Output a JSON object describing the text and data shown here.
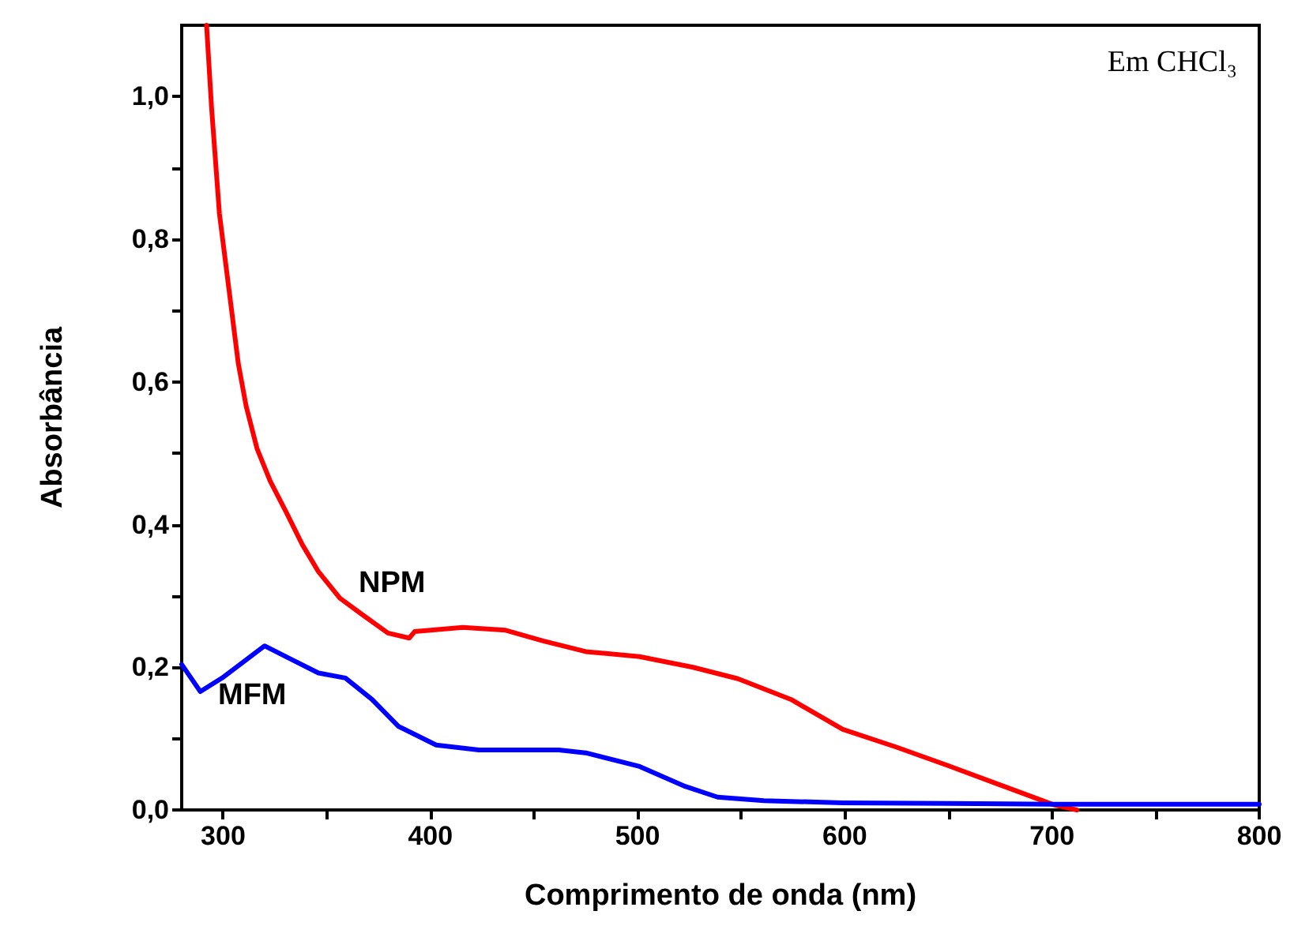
{
  "chart_data": {
    "type": "line",
    "xlabel": "Comprimento de onda (nm)",
    "ylabel": "Absorbância",
    "xlim": [
      280,
      800
    ],
    "ylim": [
      0,
      1.1
    ],
    "xticks": [
      {
        "value": 300,
        "label": "300"
      },
      {
        "value": 350,
        "label": null
      },
      {
        "value": 400,
        "label": "400"
      },
      {
        "value": 450,
        "label": null
      },
      {
        "value": 500,
        "label": "500"
      },
      {
        "value": 550,
        "label": null
      },
      {
        "value": 600,
        "label": "600"
      },
      {
        "value": 650,
        "label": null
      },
      {
        "value": 700,
        "label": "700"
      },
      {
        "value": 750,
        "label": null
      },
      {
        "value": 800,
        "label": "800"
      }
    ],
    "yticks": [
      {
        "value": 0,
        "label": "0,0"
      },
      {
        "value": 0.1,
        "label": null
      },
      {
        "value": 0.2,
        "label": "0,2"
      },
      {
        "value": 0.3,
        "label": null
      },
      {
        "value": 0.4,
        "label": "0,4"
      },
      {
        "value": 0.5,
        "label": null
      },
      {
        "value": 0.6,
        "label": "0,6"
      },
      {
        "value": 0.7,
        "label": null
      },
      {
        "value": 0.8,
        "label": "0,8"
      },
      {
        "value": 0.9,
        "label": null
      },
      {
        "value": 1.0,
        "label": "1,0"
      }
    ],
    "grid": false,
    "marker": "none",
    "line_style": "solid",
    "annotations": [
      "Em CHCl₃",
      "NPM",
      "MFM"
    ],
    "series": [
      {
        "color": "#ff0000",
        "x": [
          292,
          294.4,
          298.2,
          302.1,
          307.3,
          311.1,
          316.3,
          322.7,
          330.5,
          338.2,
          346,
          356.3,
          366.6,
          379.5,
          389.8,
          392.4,
          415.7,
          436.3,
          454.4,
          475,
          500.9,
          526.7,
          548.4,
          574,
          599,
          625,
          650,
          675,
          701,
          712
        ],
        "values": [
          1.1,
          0.985,
          0.836,
          0.746,
          0.626,
          0.566,
          0.507,
          0.461,
          0.417,
          0.372,
          0.334,
          0.297,
          0.275,
          0.248,
          0.241,
          0.25,
          0.256,
          0.252,
          0.237,
          0.222,
          0.215,
          0.2,
          0.184,
          0.155,
          0.113,
          0.088,
          0.062,
          0.035,
          0.007,
          0
        ]
      },
      {
        "color": "#0000ff",
        "x": [
          280,
          289,
          299.5,
          320,
          333,
          346,
          359,
          371.8,
          384.7,
          402.8,
          423.4,
          462,
          475,
          501,
          523,
          538.6,
          561,
          599,
          650,
          700,
          750,
          800
        ],
        "values": [
          0.204,
          0.166,
          0.185,
          0.23,
          0.211,
          0.192,
          0.185,
          0.155,
          0.117,
          0.091,
          0.084,
          0.084,
          0.08,
          0.061,
          0.033,
          0.018,
          0.013,
          0.01,
          0.009,
          0.008,
          0.008,
          0.008
        ]
      }
    ]
  }
}
